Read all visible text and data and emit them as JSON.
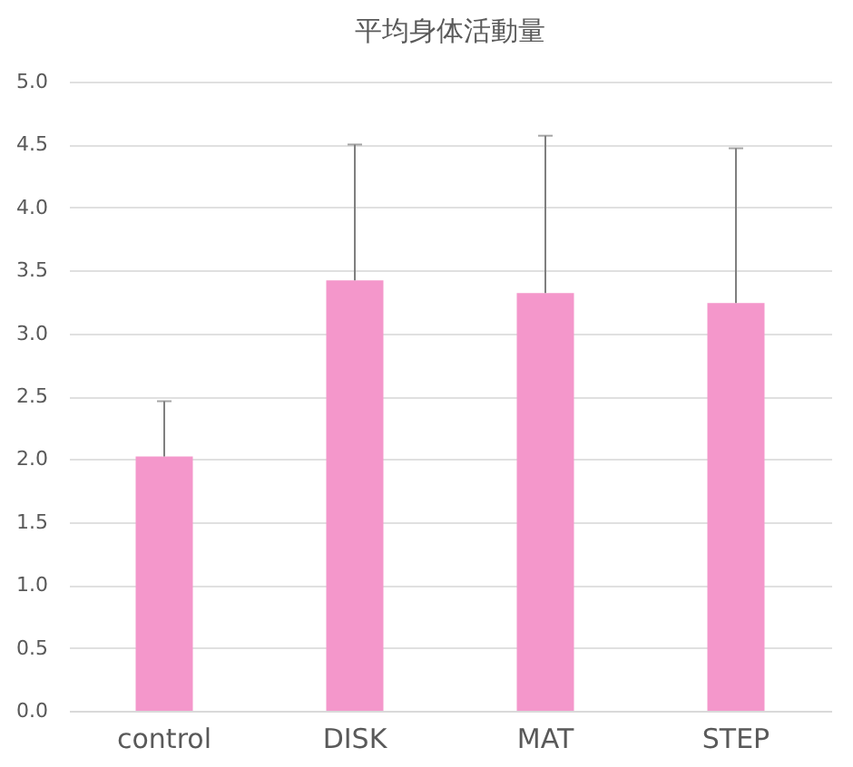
{
  "chart_data": {
    "type": "bar",
    "title": "平均身体活動量",
    "categories": [
      "control",
      "DISK",
      "MAT",
      "STEP"
    ],
    "values": [
      2.02,
      3.42,
      3.32,
      3.24
    ],
    "errors": [
      [
        2.02,
        2.46
      ],
      [
        3.42,
        4.5
      ],
      [
        3.32,
        4.57
      ],
      [
        3.24,
        4.47
      ]
    ],
    "color": "#f497cb",
    "ylim": [
      0,
      5
    ],
    "yticks": [
      {
        "value": 0,
        "label": "0.0"
      },
      {
        "value": 0.5,
        "label": "0.5"
      },
      {
        "value": 1,
        "label": "1.0"
      },
      {
        "value": 1.5,
        "label": "1.5"
      },
      {
        "value": 2,
        "label": "2.0"
      },
      {
        "value": 2.5,
        "label": "2.5"
      },
      {
        "value": 3,
        "label": "3.0"
      },
      {
        "value": 3.5,
        "label": "3.5"
      },
      {
        "value": 4,
        "label": "4.0"
      },
      {
        "value": 4.5,
        "label": "4.5"
      },
      {
        "value": 5,
        "label": "5.0"
      }
    ],
    "grid": "y"
  }
}
